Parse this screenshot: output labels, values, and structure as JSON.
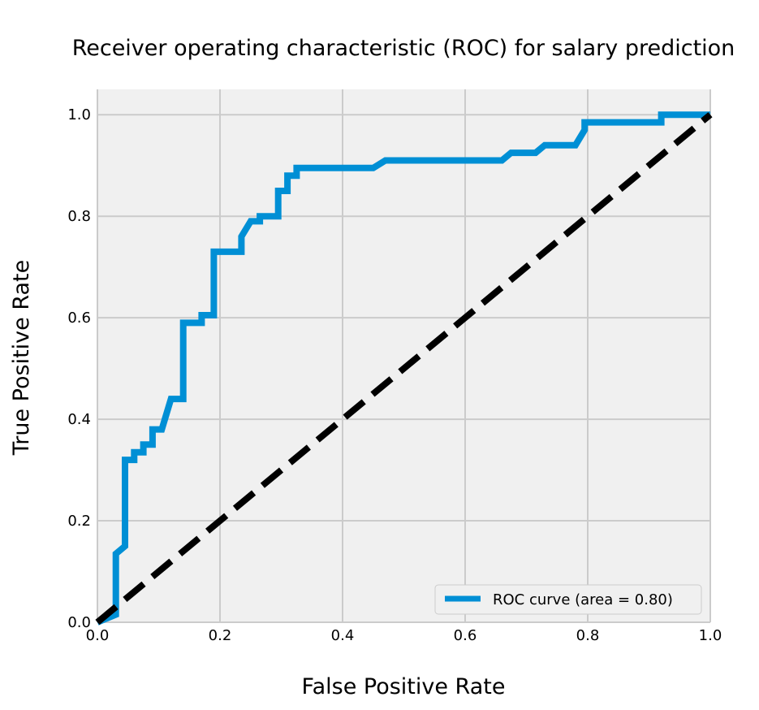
{
  "chart_data": {
    "type": "line",
    "title": "Receiver operating characteristic (ROC) for salary prediction",
    "xlabel": "False Positive Rate",
    "ylabel": "True Positive Rate",
    "xlim": [
      0.0,
      1.0
    ],
    "ylim": [
      0.0,
      1.05
    ],
    "x_ticks": [
      "0.0",
      "0.2",
      "0.4",
      "0.6",
      "0.8",
      "1.0"
    ],
    "y_ticks": [
      "0.0",
      "0.2",
      "0.4",
      "0.6",
      "0.8",
      "1.0"
    ],
    "grid": true,
    "legend_position": "lower-right",
    "series": [
      {
        "name": "ROC curve (area = 0.80)",
        "color": "#008fd5",
        "style": "solid",
        "x": [
          0.0,
          0.03,
          0.03,
          0.045,
          0.045,
          0.06,
          0.06,
          0.075,
          0.075,
          0.09,
          0.09,
          0.105,
          0.12,
          0.14,
          0.14,
          0.17,
          0.17,
          0.19,
          0.19,
          0.235,
          0.235,
          0.25,
          0.265,
          0.265,
          0.295,
          0.295,
          0.31,
          0.31,
          0.325,
          0.325,
          0.45,
          0.47,
          0.66,
          0.675,
          0.715,
          0.73,
          0.78,
          0.795,
          0.795,
          0.92,
          0.92,
          1.0
        ],
        "y": [
          0.0,
          0.015,
          0.135,
          0.15,
          0.32,
          0.32,
          0.335,
          0.335,
          0.35,
          0.35,
          0.38,
          0.38,
          0.44,
          0.44,
          0.59,
          0.59,
          0.605,
          0.605,
          0.73,
          0.73,
          0.76,
          0.79,
          0.79,
          0.8,
          0.8,
          0.85,
          0.85,
          0.88,
          0.88,
          0.895,
          0.895,
          0.91,
          0.91,
          0.925,
          0.925,
          0.94,
          0.94,
          0.97,
          0.985,
          0.985,
          1.0,
          1.0
        ]
      },
      {
        "color": "#000000",
        "style": "dashed",
        "x": [
          0.0,
          1.0
        ],
        "y": [
          0.0,
          1.0
        ]
      }
    ]
  }
}
